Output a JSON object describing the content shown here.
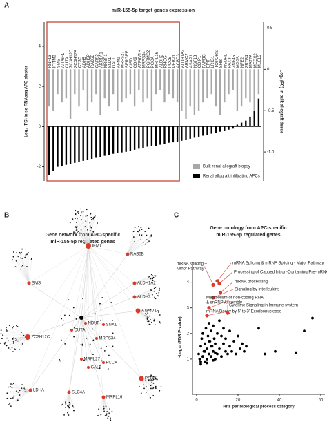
{
  "panels": {
    "a": "A",
    "b": "B",
    "c": "C"
  },
  "chart_data": [
    {
      "type": "bar",
      "title": "miR-155-5p target genes expression",
      "y_label": "Log₂ (FC) in sc-RNAseq  APC cluster",
      "y2_label": "Log₂ (FC) in bulk allograft tissue",
      "categories": [
        "RNF13",
        "IFITM3",
        "SMS",
        "ATP6F1",
        "CUTA",
        "ZC3H12C",
        "ZC3H12A",
        "CTSC",
        "ADH5",
        "ADH5P",
        "RAB5B",
        "CARS2",
        "AKR1A1",
        "NRBP1",
        "SNX1",
        "GALT",
        "AFM1",
        "MRPS27",
        "SERGEF",
        "CISD1",
        "CDK9",
        "ATP6V1H",
        "MRPS34",
        "PGRMC2",
        "PCCA",
        "MRPL16",
        "ALDH2",
        "RHOG",
        "PCCB",
        "PEBP1",
        "ACBD3",
        "ALDH1A2",
        "ARMC2",
        "ASAP1",
        "NSF18",
        "CDIP1",
        "FAM3C",
        "EPIP",
        "LRIG1",
        "TOPORS",
        "SHB",
        "NSDHL",
        "PAX3",
        "ZNF45",
        "MPPS",
        "NFE2",
        "ZBTB4",
        "MAT2A",
        "MEOX2",
        "MLE15"
      ],
      "series": [
        {
          "name": "Bulk renal allograft biopsy",
          "color": "#a8a8a8",
          "axis": "y2",
          "values": [
            -0.45,
            -0.5,
            -0.3,
            -0.4,
            -0.35,
            -0.6,
            -0.3,
            -0.45,
            -0.25,
            -0.5,
            -0.4,
            -0.3,
            -0.55,
            -0.35,
            -0.45,
            -0.3,
            -0.5,
            -0.4,
            -0.35,
            -0.3,
            -0.45,
            -0.25,
            -0.4,
            -0.35,
            -0.5,
            -0.3,
            -0.25,
            -0.4,
            -0.3,
            -0.35,
            -0.4,
            -0.5,
            -0.6,
            -0.45,
            -0.55,
            -0.5,
            -0.4,
            -0.35,
            -0.3,
            -0.45,
            -0.55,
            -0.4,
            -0.3,
            -0.25,
            -0.5,
            -0.45,
            -0.35,
            -0.4,
            -0.7,
            -0.3
          ]
        },
        {
          "name": "Renal allograft infiltrating APCs",
          "color": "#000000",
          "values": [
            -2.4,
            -2.2,
            -2.0,
            -1.95,
            -1.9,
            -1.85,
            -1.8,
            -1.75,
            -1.7,
            -1.65,
            -1.6,
            -1.55,
            -1.5,
            -1.45,
            -1.4,
            -1.35,
            -1.3,
            -1.28,
            -1.25,
            -1.2,
            -1.15,
            -1.1,
            -1.05,
            -1.0,
            -0.98,
            -0.95,
            -0.9,
            -0.85,
            -0.8,
            -0.78,
            -0.75,
            -0.7,
            -0.65,
            -0.6,
            -0.55,
            -0.5,
            -0.45,
            -0.4,
            -0.35,
            -0.3,
            -0.25,
            -0.2,
            -0.15,
            -0.1,
            0.1,
            0.2,
            0.3,
            0.5,
            0.8,
            1.4
          ]
        }
      ],
      "ylim": [
        -2.7,
        5.2
      ],
      "yticks": [
        -2,
        0,
        2,
        4
      ],
      "y2lim": [
        -1.35,
        0.57
      ],
      "y2ticks": [
        {
          "value": 0.5,
          "label": "0.5"
        },
        0,
        {
          "value": -0.5,
          "label": "-0.5"
        },
        {
          "value": -1,
          "label": "-1.0"
        }
      ],
      "highlight_color": "#c0392b"
    },
    {
      "type": "scatter",
      "title": "Gene ontology from APC-specific miR-155-5p regulated genes",
      "x_label": "Hits per biological process category",
      "y_label": "-Log₁₀ (FDR P-value)",
      "x": [
        1,
        1.5,
        2,
        2,
        2.5,
        3,
        3,
        3.5,
        4,
        4,
        4.5,
        5,
        5,
        5.5,
        6,
        6,
        6.5,
        7,
        7,
        7.5,
        8,
        8,
        8.5,
        9,
        9,
        10,
        10,
        11,
        11,
        12,
        12,
        13,
        13,
        14,
        14,
        15,
        16,
        16,
        17,
        18,
        19,
        20,
        21,
        22,
        23,
        24,
        2,
        3,
        4,
        5,
        6,
        7,
        8,
        9,
        30,
        33,
        38,
        48,
        52,
        56
      ],
      "y": [
        1.2,
        1.0,
        1.5,
        0.8,
        1.8,
        1.1,
        2.0,
        1.3,
        0.9,
        1.6,
        2.2,
        1.0,
        1.4,
        1.9,
        1.2,
        2.4,
        1.7,
        1.1,
        2.1,
        1.5,
        1.3,
        2.3,
        1.8,
        1.0,
        1.6,
        2.0,
        1.2,
        1.4,
        2.5,
        1.9,
        1.1,
        1.6,
        2.2,
        1.3,
        1.8,
        1.2,
        1.5,
        2.1,
        1.3,
        1.7,
        1.2,
        1.9,
        1.4,
        1.6,
        1.3,
        1.5,
        0.9,
        1.1,
        1.3,
        0.85,
        1.7,
        1.5,
        0.95,
        1.25,
        2.2,
        1.2,
        1.3,
        1.25,
        2.1,
        2.6
      ],
      "color": "#000000",
      "annotations": [
        {
          "text": [
            "mRNA splicing –",
            "Minor Pathway"
          ],
          "x": 8,
          "y": 3.9
        },
        {
          "text": [
            "mRNA Splicing & mRNA Splicing - Major Pathway"
          ],
          "x": 10,
          "y": 4.05
        },
        {
          "text": [
            "Processing of Capped Intron-Containing Pre-mRNA"
          ],
          "x": 11,
          "y": 3.95
        },
        {
          "text": [
            "mRNA processing"
          ],
          "x": 11.5,
          "y": 3.6
        },
        {
          "text": [
            "Signaling by Interleukins"
          ],
          "x": 8,
          "y": 3.4
        },
        {
          "text": [
            "Metabolism of non-coding RNA",
            "& snRNP Assembly"
          ],
          "x": 6,
          "y": 3.0
        },
        {
          "text": [
            "mRNA Decay by 5' to 3' Exoribonuclease"
          ],
          "x": 5,
          "y": 2.7
        },
        {
          "text": [
            "Cytokine Signaling in Immune system"
          ],
          "x": 15,
          "y": 2.8
        }
      ],
      "annotation_color": "#d93a2b",
      "xlim": [
        0,
        60
      ],
      "xticks": [
        0,
        20,
        40,
        60
      ],
      "ylim": [
        0,
        4.8
      ],
      "yticks": [
        1,
        2,
        3,
        4
      ]
    }
  ],
  "network": {
    "title": [
      "Gene network from APC-specific",
      "miR-155-5p regulated genes"
    ],
    "nodes": [
      {
        "label": "IFM1"
      },
      {
        "label": "RAB5B"
      },
      {
        "label": "SMS"
      },
      {
        "label": "ZC3H12C"
      },
      {
        "label": "LDHA"
      },
      {
        "label": "SLC4A"
      },
      {
        "label": "MRPL16"
      },
      {
        "label": "PEBP1"
      },
      {
        "label": "ATP6V1H"
      },
      {
        "label": "ALDH2"
      },
      {
        "label": "ALDH1A2"
      },
      {
        "label": "SNX1"
      },
      {
        "label": "MRPS34"
      },
      {
        "label": "PCCA"
      },
      {
        "label": "GALT"
      },
      {
        "label": "MRPL27"
      },
      {
        "label": "CUTA"
      },
      {
        "label": "NDUF"
      }
    ]
  }
}
